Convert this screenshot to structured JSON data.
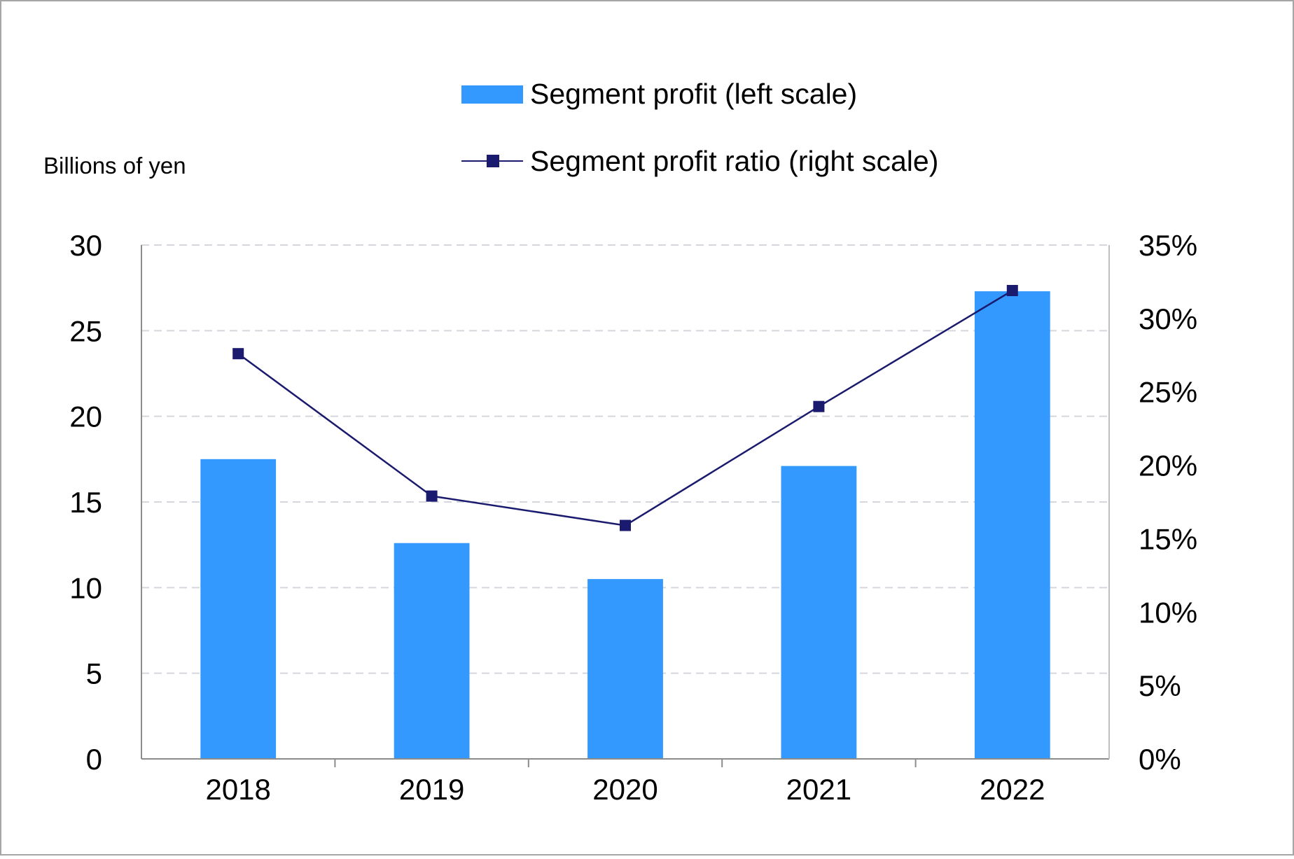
{
  "chart_data": {
    "type": "bar+line",
    "categories": [
      "2018",
      "2019",
      "2020",
      "2021",
      "2022"
    ],
    "series": [
      {
        "name": "Segment profit (left scale)",
        "type": "bar",
        "axis": "left",
        "values": [
          17.5,
          12.6,
          10.5,
          17.1,
          27.3
        ],
        "color": "#3399FF"
      },
      {
        "name": "Segment profit ratio (right scale)",
        "type": "line",
        "axis": "right",
        "values": [
          27.6,
          17.9,
          15.9,
          24.0,
          31.9
        ],
        "color": "#1A1A6E"
      }
    ],
    "y_left": {
      "label": "Billions of yen",
      "min": 0,
      "max": 30,
      "ticks": [
        "0",
        "5",
        "10",
        "15",
        "20",
        "25",
        "30"
      ]
    },
    "y_right": {
      "min": 0,
      "max": 35,
      "ticks": [
        "0%",
        "5%",
        "10%",
        "15%",
        "20%",
        "25%",
        "30%",
        "35%"
      ]
    },
    "grid": true,
    "legend_position": "top-center"
  }
}
